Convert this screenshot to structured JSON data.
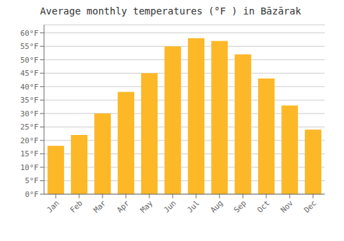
{
  "chart_data": {
    "type": "bar",
    "title": "Average monthly temperatures (°F ) in Bāzārak",
    "categories": [
      "Jan",
      "Feb",
      "Mar",
      "Apr",
      "May",
      "Jun",
      "Jul",
      "Aug",
      "Sep",
      "Oct",
      "Nov",
      "Dec"
    ],
    "values": [
      18,
      22,
      30,
      38,
      45,
      55,
      58,
      57,
      52,
      43,
      33,
      24
    ],
    "color": "#FDB827",
    "ylim": [
      0,
      63
    ],
    "yticks": [
      {
        "value": 0,
        "label": "0°F"
      },
      {
        "value": 5,
        "label": "5°F"
      },
      {
        "value": 10,
        "label": "10°F"
      },
      {
        "value": 15,
        "label": "15°F"
      },
      {
        "value": 20,
        "label": "20°F"
      },
      {
        "value": 25,
        "label": "25°F"
      },
      {
        "value": 30,
        "label": "30°F"
      },
      {
        "value": 35,
        "label": "35°F"
      },
      {
        "value": 40,
        "label": "40°F"
      },
      {
        "value": 45,
        "label": "45°F"
      },
      {
        "value": 50,
        "label": "50°F"
      },
      {
        "value": 55,
        "label": "55°F"
      },
      {
        "value": 60,
        "label": "60°F"
      }
    ],
    "grid": true
  }
}
